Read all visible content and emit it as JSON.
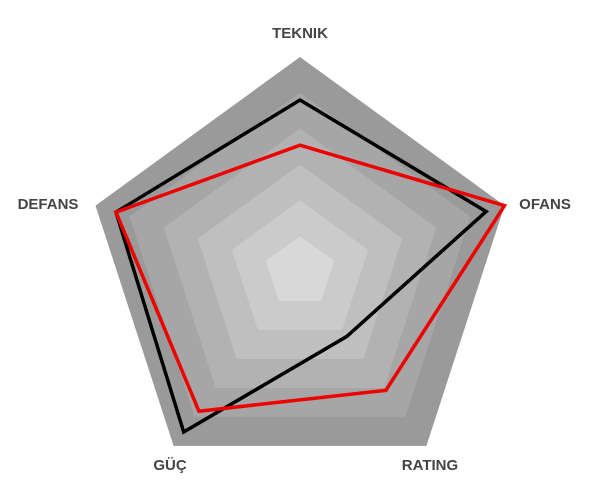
{
  "chart_data": {
    "type": "radar",
    "axes": [
      "TEKNIK",
      "OFANS",
      "RATING",
      "GÜÇ",
      "DEFANS"
    ],
    "rmax": 100,
    "levels": 6,
    "band_colors": [
      "#9a9a9a",
      "#a6a6a6",
      "#b2b2b2",
      "#bfbfbf",
      "#cbcbcb",
      "#d8d8d8"
    ],
    "grid": false,
    "series": [
      {
        "color": "#000000",
        "values": [
          80,
          91,
          37,
          92,
          90
        ]
      },
      {
        "color": "#ee0000",
        "values": [
          59,
          100,
          68,
          80,
          90
        ]
      }
    ]
  }
}
